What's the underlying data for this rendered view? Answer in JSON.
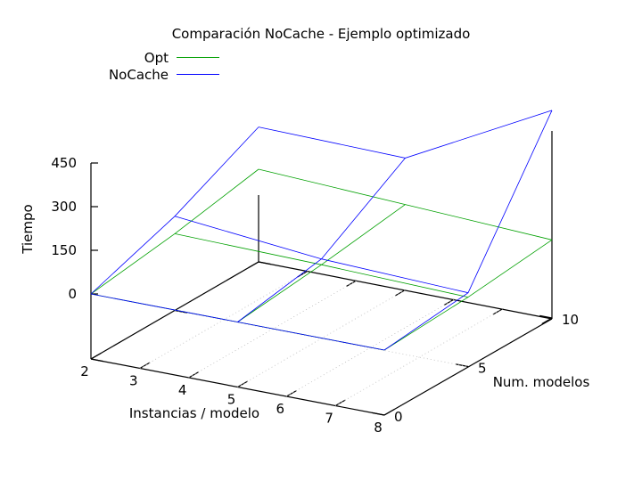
{
  "chart_data": {
    "type": "surface",
    "title": "Comparación NoCache - Ejemplo optimizado",
    "xlabel": "Instancias / modelo",
    "ylabel": "Num. modelos",
    "zlabel": "Tiempo",
    "xlim": [
      2,
      8
    ],
    "ylim": [
      0,
      10
    ],
    "zlim": [
      0,
      450
    ],
    "x_ticks": [
      2,
      3,
      4,
      5,
      6,
      7,
      8
    ],
    "y_ticks": [
      0,
      5,
      10
    ],
    "z_ticks": [
      0,
      150,
      300,
      450
    ],
    "grid": true,
    "legend_position": "top-left",
    "x": [
      2,
      5,
      8
    ],
    "y": [
      0,
      5,
      10
    ],
    "series": [
      {
        "name": "Opt",
        "color": "#00a000",
        "z": [
          [
            0,
            40,
            95
          ],
          [
            0,
            30,
            70
          ],
          [
            0,
            15,
            45
          ]
        ]
      },
      {
        "name": "NoCache",
        "color": "#0000ff",
        "z": [
          [
            0,
            100,
            240
          ],
          [
            0,
            50,
            230
          ],
          [
            0,
            30,
            490
          ]
        ]
      }
    ]
  }
}
